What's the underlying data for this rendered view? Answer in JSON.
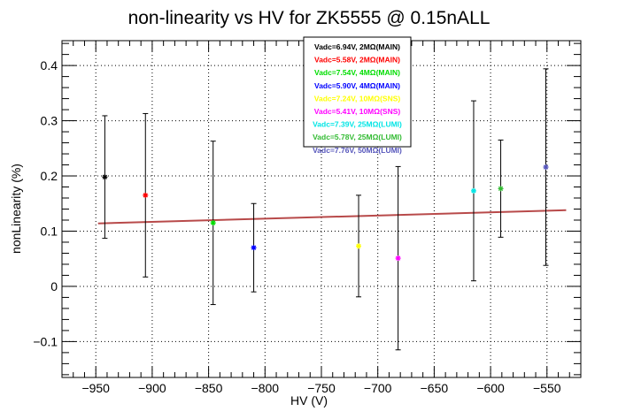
{
  "chart_data": {
    "type": "scatter",
    "title": "non-linearity vs HV for ZK5555 @ 0.15nALL",
    "xlabel": "HV (V)",
    "ylabel": "nonLinearity (%)",
    "xlim": [
      -980,
      -520
    ],
    "ylim": [
      -0.165,
      0.445
    ],
    "x_ticks": [
      -950,
      -900,
      -850,
      -800,
      -750,
      -700,
      -650,
      -600,
      -550
    ],
    "x_tick_labels": [
      "−950",
      "−900",
      "−850",
      "−800",
      "−750",
      "−700",
      "−650",
      "−600",
      "−550"
    ],
    "y_ticks": [
      -0.1,
      0,
      0.1,
      0.2,
      0.3,
      0.4
    ],
    "y_tick_labels": [
      "−0.1",
      "0",
      "0.1",
      "0.2",
      "0.3",
      "0.4"
    ],
    "grid": true,
    "legend_position": "top-center",
    "series": [
      {
        "name": "Vadc=6.94V, 2MΩ(MAIN)",
        "color": "#000000",
        "x": -942,
        "y": 0.198,
        "err": 0.111
      },
      {
        "name": "Vadc=5.58V, 2MΩ(MAIN)",
        "color": "#ff0000",
        "x": -906,
        "y": 0.165,
        "err": 0.148
      },
      {
        "name": "Vadc=7.54V, 4MΩ(MAIN)",
        "color": "#00dd00",
        "x": -846,
        "y": 0.115,
        "err": 0.148
      },
      {
        "name": "Vadc=5.90V, 4MΩ(MAIN)",
        "color": "#0000ff",
        "x": -810,
        "y": 0.07,
        "err": 0.08
      },
      {
        "name": "Vadc=7.24V, 10MΩ(SNS)",
        "color": "#ffff00",
        "x": -717,
        "y": 0.073,
        "err": 0.092
      },
      {
        "name": "Vadc=5.41V, 10MΩ(SNS)",
        "color": "#ff00ff",
        "x": -682,
        "y": 0.051,
        "err": 0.166
      },
      {
        "name": "Vadc=7.39V, 25MΩ(LUMI)",
        "color": "#00e5e5",
        "x": -615,
        "y": 0.173,
        "err": 0.163
      },
      {
        "name": "Vadc=5.78V, 25MΩ(LUMI)",
        "color": "#33bb33",
        "x": -591,
        "y": 0.177,
        "err": 0.088
      },
      {
        "name": "Vadc=7.76V, 50MΩ(LUMI)",
        "color": "#5555bb",
        "x": -551,
        "y": 0.216,
        "err": 0.178
      }
    ],
    "fit_line": {
      "color": "#b84a4a",
      "x": [
        -948,
        -533
      ],
      "y": [
        0.114,
        0.138
      ]
    }
  }
}
